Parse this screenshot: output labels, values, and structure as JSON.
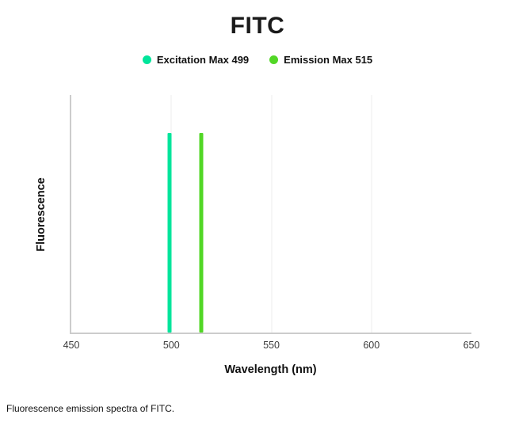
{
  "title": "FITC",
  "legend": [
    {
      "label": "Excitation Max 499",
      "color": "#00e59b"
    },
    {
      "label": "Emission Max 515",
      "color": "#52d726"
    }
  ],
  "chart_data": {
    "type": "line",
    "subtype": "spectral-peak-spikes",
    "title": "FITC",
    "xlabel": "Wavelength (nm)",
    "ylabel": "Fluorescence",
    "xlim": [
      450,
      650
    ],
    "xticks": [
      450,
      500,
      550,
      600,
      650
    ],
    "grid": true,
    "legend_position": "top",
    "series": [
      {
        "name": "Excitation Max 499",
        "peak_nm": 499,
        "relative_height": 0.84,
        "color": "#00e59b"
      },
      {
        "name": "Emission Max 515",
        "peak_nm": 515,
        "relative_height": 0.84,
        "color": "#52d726"
      }
    ]
  },
  "caption": "Fluorescence emission spectra of FITC."
}
